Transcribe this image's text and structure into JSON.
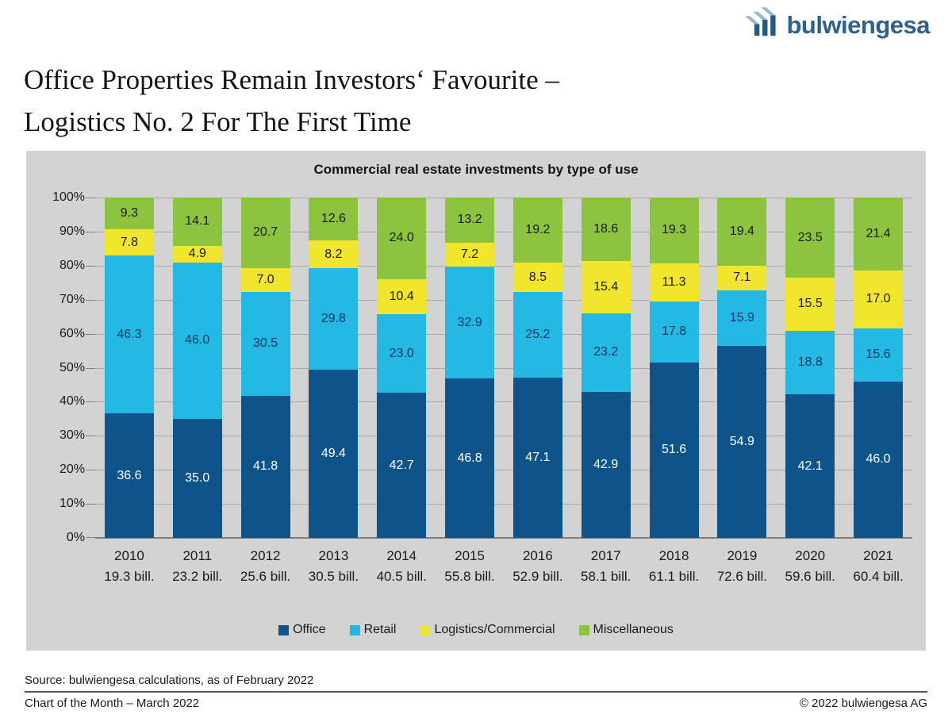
{
  "logo": {
    "text": "bulwiengesa"
  },
  "page_title": {
    "line1": "Office Properties Remain Investors‘ Favourite –",
    "line2": "Logistics No. 2 For The First Time"
  },
  "chart_data": {
    "type": "bar",
    "stacked": true,
    "title": "Commercial real estate investments by type of use",
    "categories": [
      "2010",
      "2011",
      "2012",
      "2013",
      "2014",
      "2015",
      "2016",
      "2017",
      "2018",
      "2019",
      "2020",
      "2021"
    ],
    "category_sublabels": [
      "19.3 bill.",
      "23.2 bill.",
      "25.6 bill.",
      "30.5 bill.",
      "40.5 bill.",
      "55.8 bill.",
      "52.9 bill.",
      "58.1 bill.",
      "61.1 bill.",
      "72.6 bill.",
      "59.6 bill.",
      "60.4 bill."
    ],
    "series": [
      {
        "name": "Office",
        "color": "#0F538B",
        "label_color": "#FFFFFF",
        "values": [
          36.6,
          35.0,
          41.8,
          49.4,
          42.7,
          46.8,
          47.1,
          42.9,
          51.6,
          54.9,
          42.1,
          46.0
        ]
      },
      {
        "name": "Retail",
        "color": "#24B8E4",
        "label_color": "#17365D",
        "values": [
          46.3,
          46.0,
          30.5,
          29.8,
          23.0,
          32.9,
          25.2,
          23.2,
          17.8,
          15.9,
          18.8,
          15.6
        ]
      },
      {
        "name": "Logistics/Commercial",
        "color": "#F2E62C",
        "label_color": "#1A1A1A",
        "values": [
          7.8,
          4.9,
          7.0,
          8.2,
          10.4,
          7.2,
          8.5,
          15.4,
          11.3,
          7.1,
          15.5,
          17.0
        ]
      },
      {
        "name": "Miscellaneous",
        "color": "#8CC440",
        "label_color": "#1A1A1A",
        "values": [
          9.3,
          14.1,
          20.7,
          12.6,
          24.0,
          13.2,
          19.2,
          18.6,
          19.3,
          19.4,
          23.5,
          21.4
        ]
      }
    ],
    "y_ticks": [
      "100%",
      "90%",
      "80%",
      "70%",
      "60%",
      "50%",
      "40%",
      "30%",
      "20%",
      "10%",
      "0%"
    ],
    "ylim": [
      0,
      100
    ],
    "grid": true,
    "legend_position": "bottom",
    "panel_bg": "#D3D3D3",
    "gridline_color": "#A8A8A8",
    "axis_color": "#7F7F7F"
  },
  "footer": {
    "source": "Source: bulwiengesa calculations, as of February 2022",
    "left": "Chart of the Month – March 2022",
    "right": "© 2022 bulwiengesa AG"
  }
}
